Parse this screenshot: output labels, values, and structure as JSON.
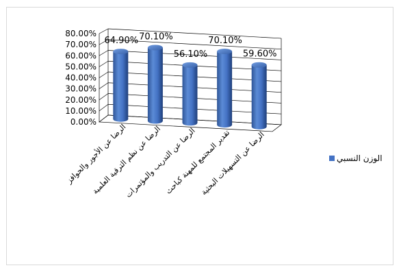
{
  "chart_data": {
    "type": "bar",
    "style": "3d-cylinder",
    "categories": [
      "الرضا عن الأجور والحوافز",
      "الرضا عن نظم الترقية العلمية",
      "الرضا عن التدريب والمؤتمرات",
      "تقدير المجتمع للمهنة كباحث",
      "الرضا عن التسهيلات البحثية"
    ],
    "series": [
      {
        "name": "الوزن النسبي",
        "values": [
          64.9,
          70.1,
          56.1,
          70.1,
          59.6
        ],
        "labels": [
          "64.90%",
          "70.10%",
          "56.10%",
          "70.10%",
          "59.60%"
        ],
        "color": "#4472c4"
      }
    ],
    "y_ticks": [
      "0.00%",
      "10.00%",
      "20.00%",
      "30.00%",
      "40.00%",
      "50.00%",
      "60.00%",
      "70.00%",
      "80.00%"
    ],
    "ylim": [
      0,
      80
    ],
    "grid": true,
    "legend_position": "right"
  }
}
